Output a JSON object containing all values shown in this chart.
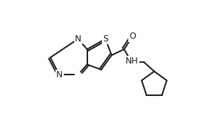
{
  "bg_color": "#ffffff",
  "line_color": "#1a1a1a",
  "line_width": 1.5,
  "font_size": 9,
  "atom_labels": {
    "N1": [
      0.32,
      0.72,
      "N"
    ],
    "N2": [
      0.1,
      0.4,
      "N"
    ],
    "S": [
      0.58,
      0.72,
      "S"
    ],
    "O": [
      0.72,
      0.88,
      "O"
    ],
    "NH": [
      0.72,
      0.48,
      "NH"
    ]
  }
}
